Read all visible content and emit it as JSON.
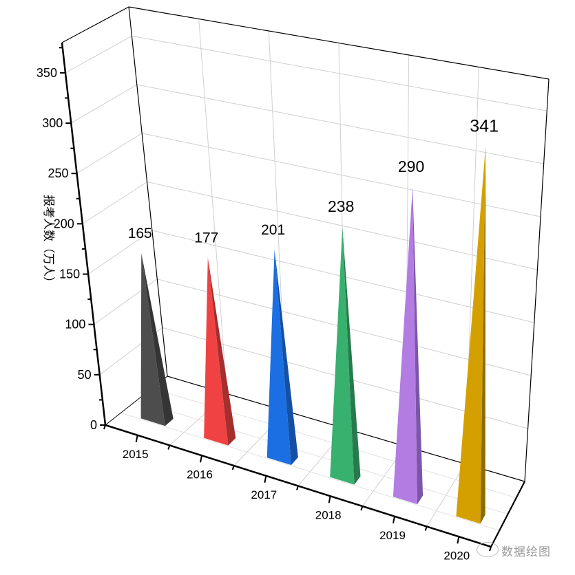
{
  "chart_data": {
    "type": "bar",
    "style": "3d-pyramid",
    "categories": [
      "2015",
      "2016",
      "2017",
      "2018",
      "2019",
      "2020"
    ],
    "values": [
      165,
      177,
      201,
      238,
      290,
      341
    ],
    "data_labels": [
      "165",
      "177",
      "201",
      "238",
      "290",
      "341"
    ],
    "ylabel": "报考人数（万人）",
    "xlabel": "",
    "ylim": [
      0,
      380
    ],
    "yticks": [
      0,
      50,
      100,
      150,
      200,
      250,
      300,
      350
    ],
    "yticks_labels": [
      "0",
      "50",
      "100",
      "150",
      "200",
      "250",
      "300",
      "350"
    ],
    "grid": true,
    "legend": "none",
    "colors": [
      "#4d4d4d",
      "#f04242",
      "#1b6fe2",
      "#38b06e",
      "#b27ce2",
      "#d4a000"
    ],
    "side_colors": [
      "#353535",
      "#a52e2e",
      "#1450a6",
      "#277a4c",
      "#7c56aa",
      "#8d6b00"
    ]
  },
  "watermark": "数据绘图"
}
